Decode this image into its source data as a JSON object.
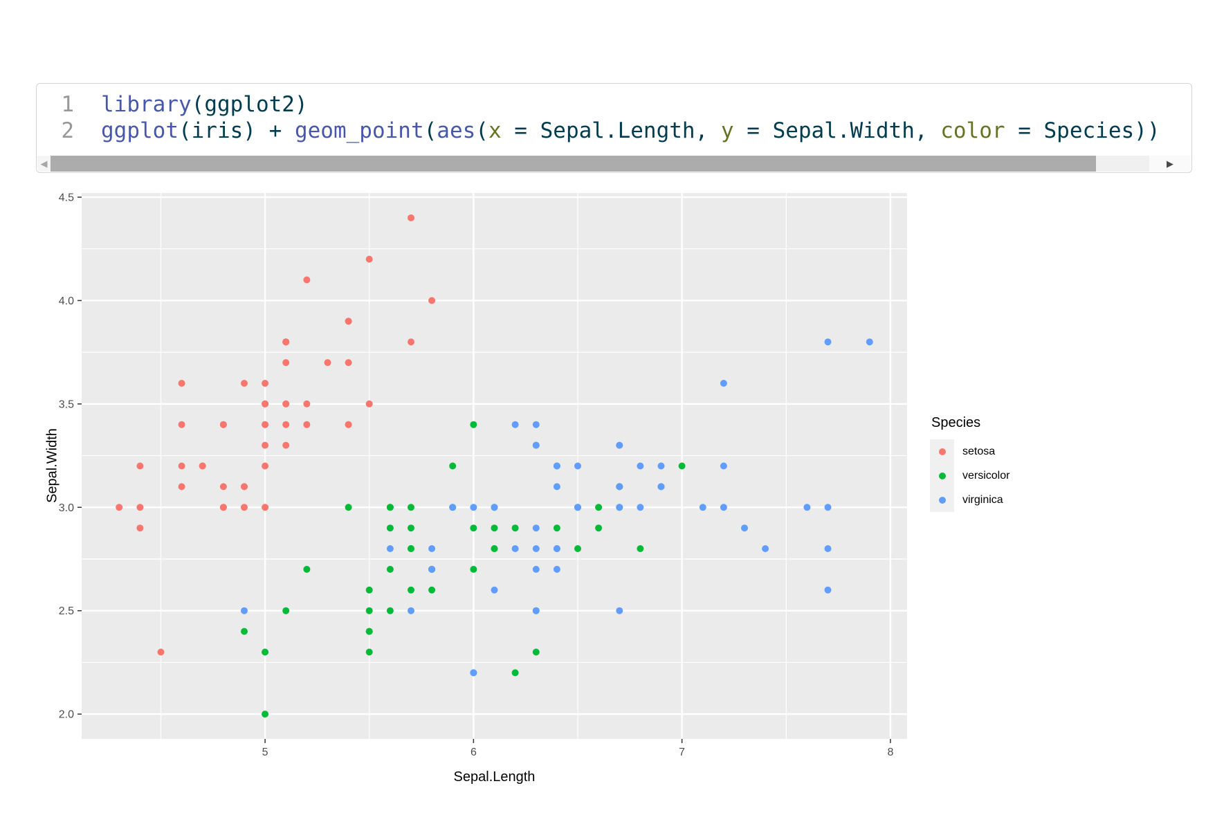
{
  "code": {
    "colors": {
      "function": "#4758AB",
      "plain": "#003B4F",
      "parameter": "#657422",
      "line_number": "#989898"
    },
    "lines": [
      {
        "number": "1",
        "tokens": [
          {
            "type": "function",
            "text": "library"
          },
          {
            "type": "plain",
            "text": "(ggplot2)"
          }
        ]
      },
      {
        "number": "2",
        "tokens": [
          {
            "type": "function",
            "text": "ggplot"
          },
          {
            "type": "plain",
            "text": "(iris) + "
          },
          {
            "type": "function",
            "text": "geom_point"
          },
          {
            "type": "plain",
            "text": "("
          },
          {
            "type": "function",
            "text": "aes"
          },
          {
            "type": "plain",
            "text": "("
          },
          {
            "type": "parameter",
            "text": "x"
          },
          {
            "type": "plain",
            "text": " = Sepal.Length, "
          },
          {
            "type": "parameter",
            "text": "y"
          },
          {
            "type": "plain",
            "text": " = Sepal.Width, "
          },
          {
            "type": "parameter",
            "text": "color"
          },
          {
            "type": "plain",
            "text": " = Species))"
          }
        ]
      }
    ],
    "scrollbar": {
      "left_arrow": "◀",
      "right_arrow": "▶"
    }
  },
  "chart_data": {
    "type": "scatter",
    "xlabel": "Sepal.Length",
    "ylabel": "Sepal.Width",
    "legend_title": "Species",
    "legend_position": "right",
    "grid": "on",
    "xlim": [
      4.12,
      8.08
    ],
    "ylim": [
      1.88,
      4.52
    ],
    "x_tick_values": [
      5,
      6,
      7,
      8
    ],
    "x_tick_labels": [
      "5",
      "6",
      "7",
      "8"
    ],
    "y_tick_values": [
      2.0,
      2.5,
      3.0,
      3.5,
      4.0,
      4.5
    ],
    "y_tick_labels": [
      "2.0",
      "2.5",
      "3.0",
      "3.5",
      "4.0",
      "4.5"
    ],
    "x_minor_ticks": [
      4.5,
      5.5,
      6.5,
      7.5
    ],
    "y_minor_ticks": [
      2.25,
      2.75,
      3.25,
      3.75,
      4.25
    ],
    "colors": {
      "panel_background": "#EBEBEB",
      "gridline": "#FFFFFF",
      "tick_label": "#4D4D4D",
      "tick_mark": "#333333",
      "legend_key_background": "#F0F0F0"
    },
    "series": [
      {
        "name": "setosa",
        "color": "#F8766D",
        "points": [
          [
            5.1,
            3.5
          ],
          [
            4.9,
            3.0
          ],
          [
            4.7,
            3.2
          ],
          [
            4.6,
            3.1
          ],
          [
            5.0,
            3.6
          ],
          [
            5.4,
            3.9
          ],
          [
            4.6,
            3.4
          ],
          [
            5.0,
            3.4
          ],
          [
            4.4,
            2.9
          ],
          [
            4.9,
            3.1
          ],
          [
            5.4,
            3.7
          ],
          [
            4.8,
            3.4
          ],
          [
            4.8,
            3.0
          ],
          [
            4.3,
            3.0
          ],
          [
            5.8,
            4.0
          ],
          [
            5.7,
            4.4
          ],
          [
            5.4,
            3.9
          ],
          [
            5.1,
            3.5
          ],
          [
            5.7,
            3.8
          ],
          [
            5.1,
            3.8
          ],
          [
            5.4,
            3.4
          ],
          [
            5.1,
            3.7
          ],
          [
            4.6,
            3.6
          ],
          [
            5.1,
            3.3
          ],
          [
            4.8,
            3.4
          ],
          [
            5.0,
            3.0
          ],
          [
            5.0,
            3.4
          ],
          [
            5.2,
            3.5
          ],
          [
            5.2,
            3.4
          ],
          [
            4.7,
            3.2
          ],
          [
            4.8,
            3.1
          ],
          [
            5.4,
            3.4
          ],
          [
            5.2,
            4.1
          ],
          [
            5.5,
            4.2
          ],
          [
            4.9,
            3.1
          ],
          [
            5.0,
            3.2
          ],
          [
            5.5,
            3.5
          ],
          [
            4.9,
            3.6
          ],
          [
            4.4,
            3.0
          ],
          [
            5.1,
            3.4
          ],
          [
            5.0,
            3.5
          ],
          [
            4.5,
            2.3
          ],
          [
            4.4,
            3.2
          ],
          [
            5.0,
            3.5
          ],
          [
            5.1,
            3.8
          ],
          [
            4.8,
            3.0
          ],
          [
            5.1,
            3.8
          ],
          [
            4.6,
            3.2
          ],
          [
            5.3,
            3.7
          ],
          [
            5.0,
            3.3
          ]
        ]
      },
      {
        "name": "versicolor",
        "color": "#00BA38",
        "points": [
          [
            7.0,
            3.2
          ],
          [
            6.4,
            3.2
          ],
          [
            6.9,
            3.1
          ],
          [
            5.5,
            2.3
          ],
          [
            6.5,
            2.8
          ],
          [
            5.7,
            2.8
          ],
          [
            6.3,
            3.3
          ],
          [
            4.9,
            2.4
          ],
          [
            6.6,
            2.9
          ],
          [
            5.2,
            2.7
          ],
          [
            5.0,
            2.0
          ],
          [
            5.9,
            3.0
          ],
          [
            6.0,
            2.2
          ],
          [
            6.1,
            2.9
          ],
          [
            5.6,
            2.9
          ],
          [
            6.7,
            3.1
          ],
          [
            5.6,
            3.0
          ],
          [
            5.8,
            2.7
          ],
          [
            6.2,
            2.2
          ],
          [
            5.6,
            2.5
          ],
          [
            5.9,
            3.2
          ],
          [
            6.1,
            2.8
          ],
          [
            6.3,
            2.5
          ],
          [
            6.1,
            2.8
          ],
          [
            6.4,
            2.9
          ],
          [
            6.6,
            3.0
          ],
          [
            6.8,
            2.8
          ],
          [
            6.7,
            3.0
          ],
          [
            6.0,
            2.9
          ],
          [
            5.7,
            2.6
          ],
          [
            5.5,
            2.4
          ],
          [
            5.5,
            2.4
          ],
          [
            5.8,
            2.7
          ],
          [
            6.0,
            2.7
          ],
          [
            5.4,
            3.0
          ],
          [
            6.0,
            3.4
          ],
          [
            6.7,
            3.1
          ],
          [
            6.3,
            2.3
          ],
          [
            5.6,
            3.0
          ],
          [
            5.5,
            2.5
          ],
          [
            5.5,
            2.6
          ],
          [
            6.1,
            3.0
          ],
          [
            5.8,
            2.6
          ],
          [
            5.0,
            2.3
          ],
          [
            5.6,
            2.7
          ],
          [
            5.7,
            3.0
          ],
          [
            5.7,
            2.9
          ],
          [
            6.2,
            2.9
          ],
          [
            5.1,
            2.5
          ],
          [
            5.7,
            2.8
          ]
        ]
      },
      {
        "name": "virginica",
        "color": "#619CFF",
        "points": [
          [
            6.3,
            3.3
          ],
          [
            5.8,
            2.7
          ],
          [
            7.1,
            3.0
          ],
          [
            6.3,
            2.9
          ],
          [
            6.5,
            3.0
          ],
          [
            7.6,
            3.0
          ],
          [
            4.9,
            2.5
          ],
          [
            7.3,
            2.9
          ],
          [
            6.7,
            2.5
          ],
          [
            7.2,
            3.6
          ],
          [
            6.5,
            3.2
          ],
          [
            6.4,
            2.7
          ],
          [
            6.8,
            3.0
          ],
          [
            5.7,
            2.5
          ],
          [
            5.8,
            2.8
          ],
          [
            6.4,
            3.2
          ],
          [
            6.5,
            3.0
          ],
          [
            7.7,
            3.8
          ],
          [
            7.7,
            2.6
          ],
          [
            6.0,
            2.2
          ],
          [
            6.9,
            3.2
          ],
          [
            5.6,
            2.8
          ],
          [
            7.7,
            2.8
          ],
          [
            6.3,
            2.7
          ],
          [
            6.7,
            3.3
          ],
          [
            7.2,
            3.2
          ],
          [
            6.2,
            2.8
          ],
          [
            6.1,
            3.0
          ],
          [
            6.4,
            2.8
          ],
          [
            7.2,
            3.0
          ],
          [
            7.4,
            2.8
          ],
          [
            7.9,
            3.8
          ],
          [
            6.4,
            2.8
          ],
          [
            6.3,
            2.8
          ],
          [
            6.1,
            2.6
          ],
          [
            7.7,
            3.0
          ],
          [
            6.3,
            3.4
          ],
          [
            6.4,
            3.1
          ],
          [
            6.0,
            3.0
          ],
          [
            6.9,
            3.1
          ],
          [
            6.7,
            3.1
          ],
          [
            6.9,
            3.1
          ],
          [
            5.8,
            2.7
          ],
          [
            6.8,
            3.2
          ],
          [
            6.7,
            3.3
          ],
          [
            6.7,
            3.0
          ],
          [
            6.3,
            2.5
          ],
          [
            6.5,
            3.0
          ],
          [
            6.2,
            3.4
          ],
          [
            5.9,
            3.0
          ]
        ]
      }
    ]
  }
}
